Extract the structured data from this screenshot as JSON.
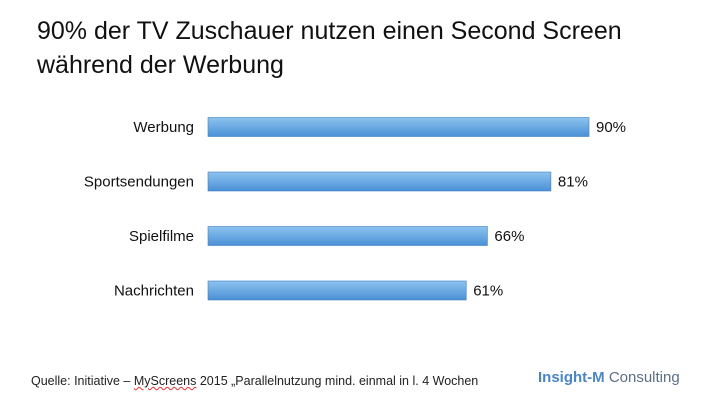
{
  "title": {
    "line1": "90% der TV Zuschauer nutzen einen Second Screen",
    "line2": "während der Werbung"
  },
  "source": {
    "prefix": "Quelle: Initiative – ",
    "squiggle": "MyScreens",
    "suffix": " 2015 „Parallelnutzung mind. einmal in l. 4 Wochen"
  },
  "brand": {
    "part1": "Insight-M",
    "part2": " Consulting"
  },
  "colors": {
    "bar_top": "#8dc3ef",
    "bar_bottom": "#4a90d6",
    "bar_stroke": "#3f7fc0"
  },
  "chart_data": {
    "type": "bar",
    "orientation": "horizontal",
    "categories": [
      "Werbung",
      "Sportsendungen",
      "Spielfilme",
      "Nachrichten"
    ],
    "values": [
      90,
      81,
      66,
      61
    ],
    "value_labels": [
      "90%",
      "81%",
      "66%",
      "61%"
    ],
    "xlim": [
      0,
      100
    ],
    "grid": false
  }
}
